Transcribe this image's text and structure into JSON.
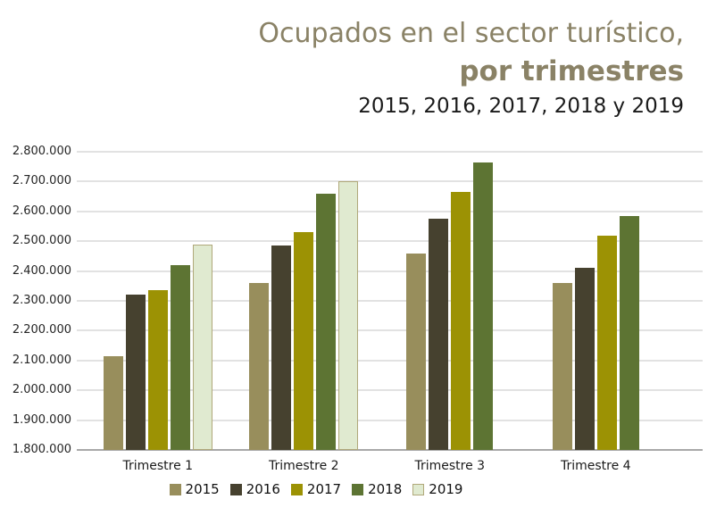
{
  "header": {
    "title_line1": "Ocupados en el sector turístico,",
    "title_line2": "por trimestres",
    "title_line3": "2015, 2016, 2017, 2018 y 2019"
  },
  "chart_data": {
    "type": "bar",
    "title": "Ocupados en el sector turístico, por trimestres",
    "subtitle": "2015, 2016, 2017, 2018 y 2019",
    "categories": [
      "Trimestre 1",
      "Trimestre 2",
      "Trimestre 3",
      "Trimestre 4"
    ],
    "series": [
      {
        "name": "2015",
        "color": "#988e5c",
        "values": [
          2115000,
          2360000,
          2460000,
          2360000
        ]
      },
      {
        "name": "2016",
        "color": "#46412f",
        "values": [
          2320000,
          2485000,
          2575000,
          2410000
        ]
      },
      {
        "name": "2017",
        "color": "#9c9204",
        "values": [
          2335000,
          2530000,
          2665000,
          2520000
        ]
      },
      {
        "name": "2018",
        "color": "#5d7433",
        "values": [
          2420000,
          2660000,
          2765000,
          2585000
        ]
      },
      {
        "name": "2019",
        "color": "#e0ead0",
        "border_color": "#b0a87a",
        "values": [
          2490000,
          2700000,
          null,
          null
        ]
      }
    ],
    "ylim": [
      1800000,
      2800000
    ],
    "ytick_step": 100000,
    "ytick_labels": [
      "2.800.000",
      "2.700.000",
      "2.600.000",
      "2.500.000",
      "2.400.000",
      "2.300.000",
      "2.200.000",
      "2.100.000",
      "2.000.000",
      "1.900.000",
      "1.800.000"
    ],
    "grid": true,
    "legend_position": "bottom",
    "legend_labels": [
      "2015",
      "2016",
      "2017",
      "2018",
      "2019"
    ]
  },
  "colors": {
    "title": "#8a8266",
    "subtitle_text": "#1a1a1a",
    "grid": "#e2e2e2",
    "axis": "#a8a8a8",
    "tick_label": "#242424",
    "background": "#ffffff"
  }
}
